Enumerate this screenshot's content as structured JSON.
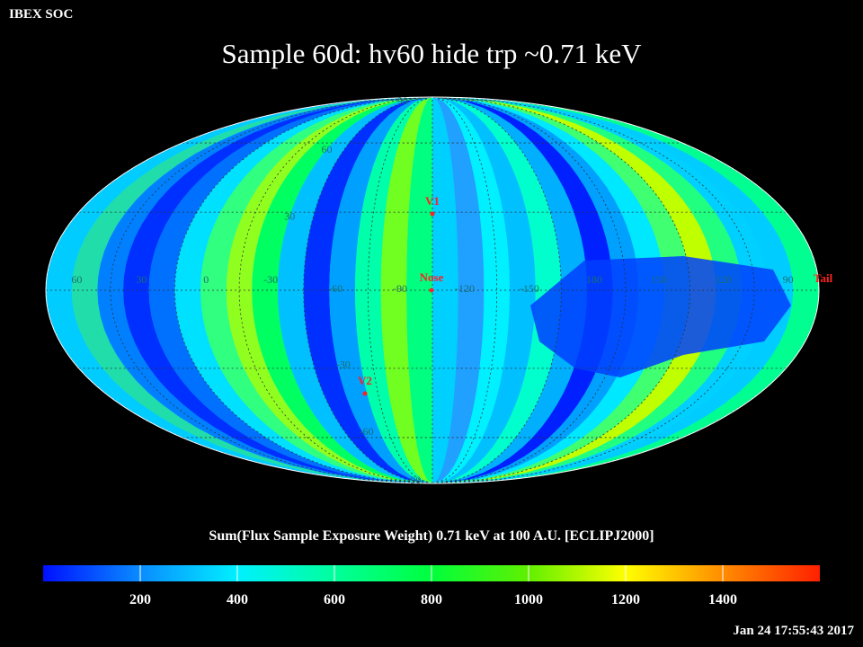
{
  "header": {
    "corner_label": "IBEX SOC",
    "title": "Sample 60d: hv60 hide trp ~0.71 keV"
  },
  "caption": "Sum(Flux Sample Exposure Weight)  0.71 keV at 100 A.U. [ECLIPJ2000]",
  "timestamp": "Jan 24 17:55:43 2017",
  "colorbar": {
    "ticks": [
      "200",
      "400",
      "600",
      "800",
      "1000",
      "1200",
      "1400"
    ],
    "tick_values": [
      200,
      400,
      600,
      800,
      1000,
      1200,
      1400
    ],
    "range": [
      0,
      1600
    ],
    "colors": [
      "#0010ff",
      "#0a8cff",
      "#00f0ff",
      "#00ff9c",
      "#00ff3c",
      "#60f000",
      "#ffff00",
      "#ff8c00",
      "#ff2000"
    ]
  },
  "map": {
    "projection": "mollweide",
    "longitude_labels": [
      "60",
      "30",
      "0",
      "-30",
      "-60",
      "-90",
      "-120",
      "-150",
      "180",
      "150",
      "120",
      "90"
    ],
    "latitude_labels": [
      {
        "text": "90",
        "lat": 90
      },
      {
        "text": "60",
        "lat": 60
      },
      {
        "text": "30",
        "lat": 30
      },
      {
        "text": "-30",
        "lat": -30
      },
      {
        "text": "-60",
        "lat": -60
      },
      {
        "text": "-90",
        "lat": -90
      }
    ],
    "markers": [
      {
        "name": "V1",
        "color": "#ff2020"
      },
      {
        "name": "Nose",
        "color": "#ff2020"
      },
      {
        "name": "V2",
        "color": "#ff2020"
      }
    ],
    "edge_label": {
      "text": "Tail",
      "color": "#ff2020"
    }
  }
}
